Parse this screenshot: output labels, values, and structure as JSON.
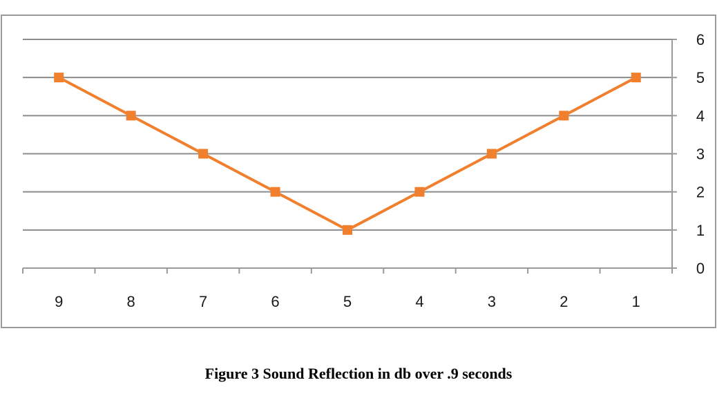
{
  "chart_data": {
    "type": "line",
    "categories": [
      "9",
      "8",
      "7",
      "6",
      "5",
      "4",
      "3",
      "2",
      "1"
    ],
    "series": [
      {
        "values": [
          5,
          4,
          3,
          2,
          1,
          2,
          3,
          4,
          5
        ]
      }
    ],
    "ylim": [
      0,
      6
    ],
    "yticks": [
      "0",
      "1",
      "2",
      "3",
      "4",
      "5",
      "6"
    ],
    "y_axis_side": "right",
    "grid": true,
    "marker": "square",
    "line_color": "#f07f2e",
    "grid_color": "#8c8c8c",
    "frame_color": "#9a9a9a",
    "caption": "Figure 3 Sound Reflection in db over .9 seconds"
  }
}
